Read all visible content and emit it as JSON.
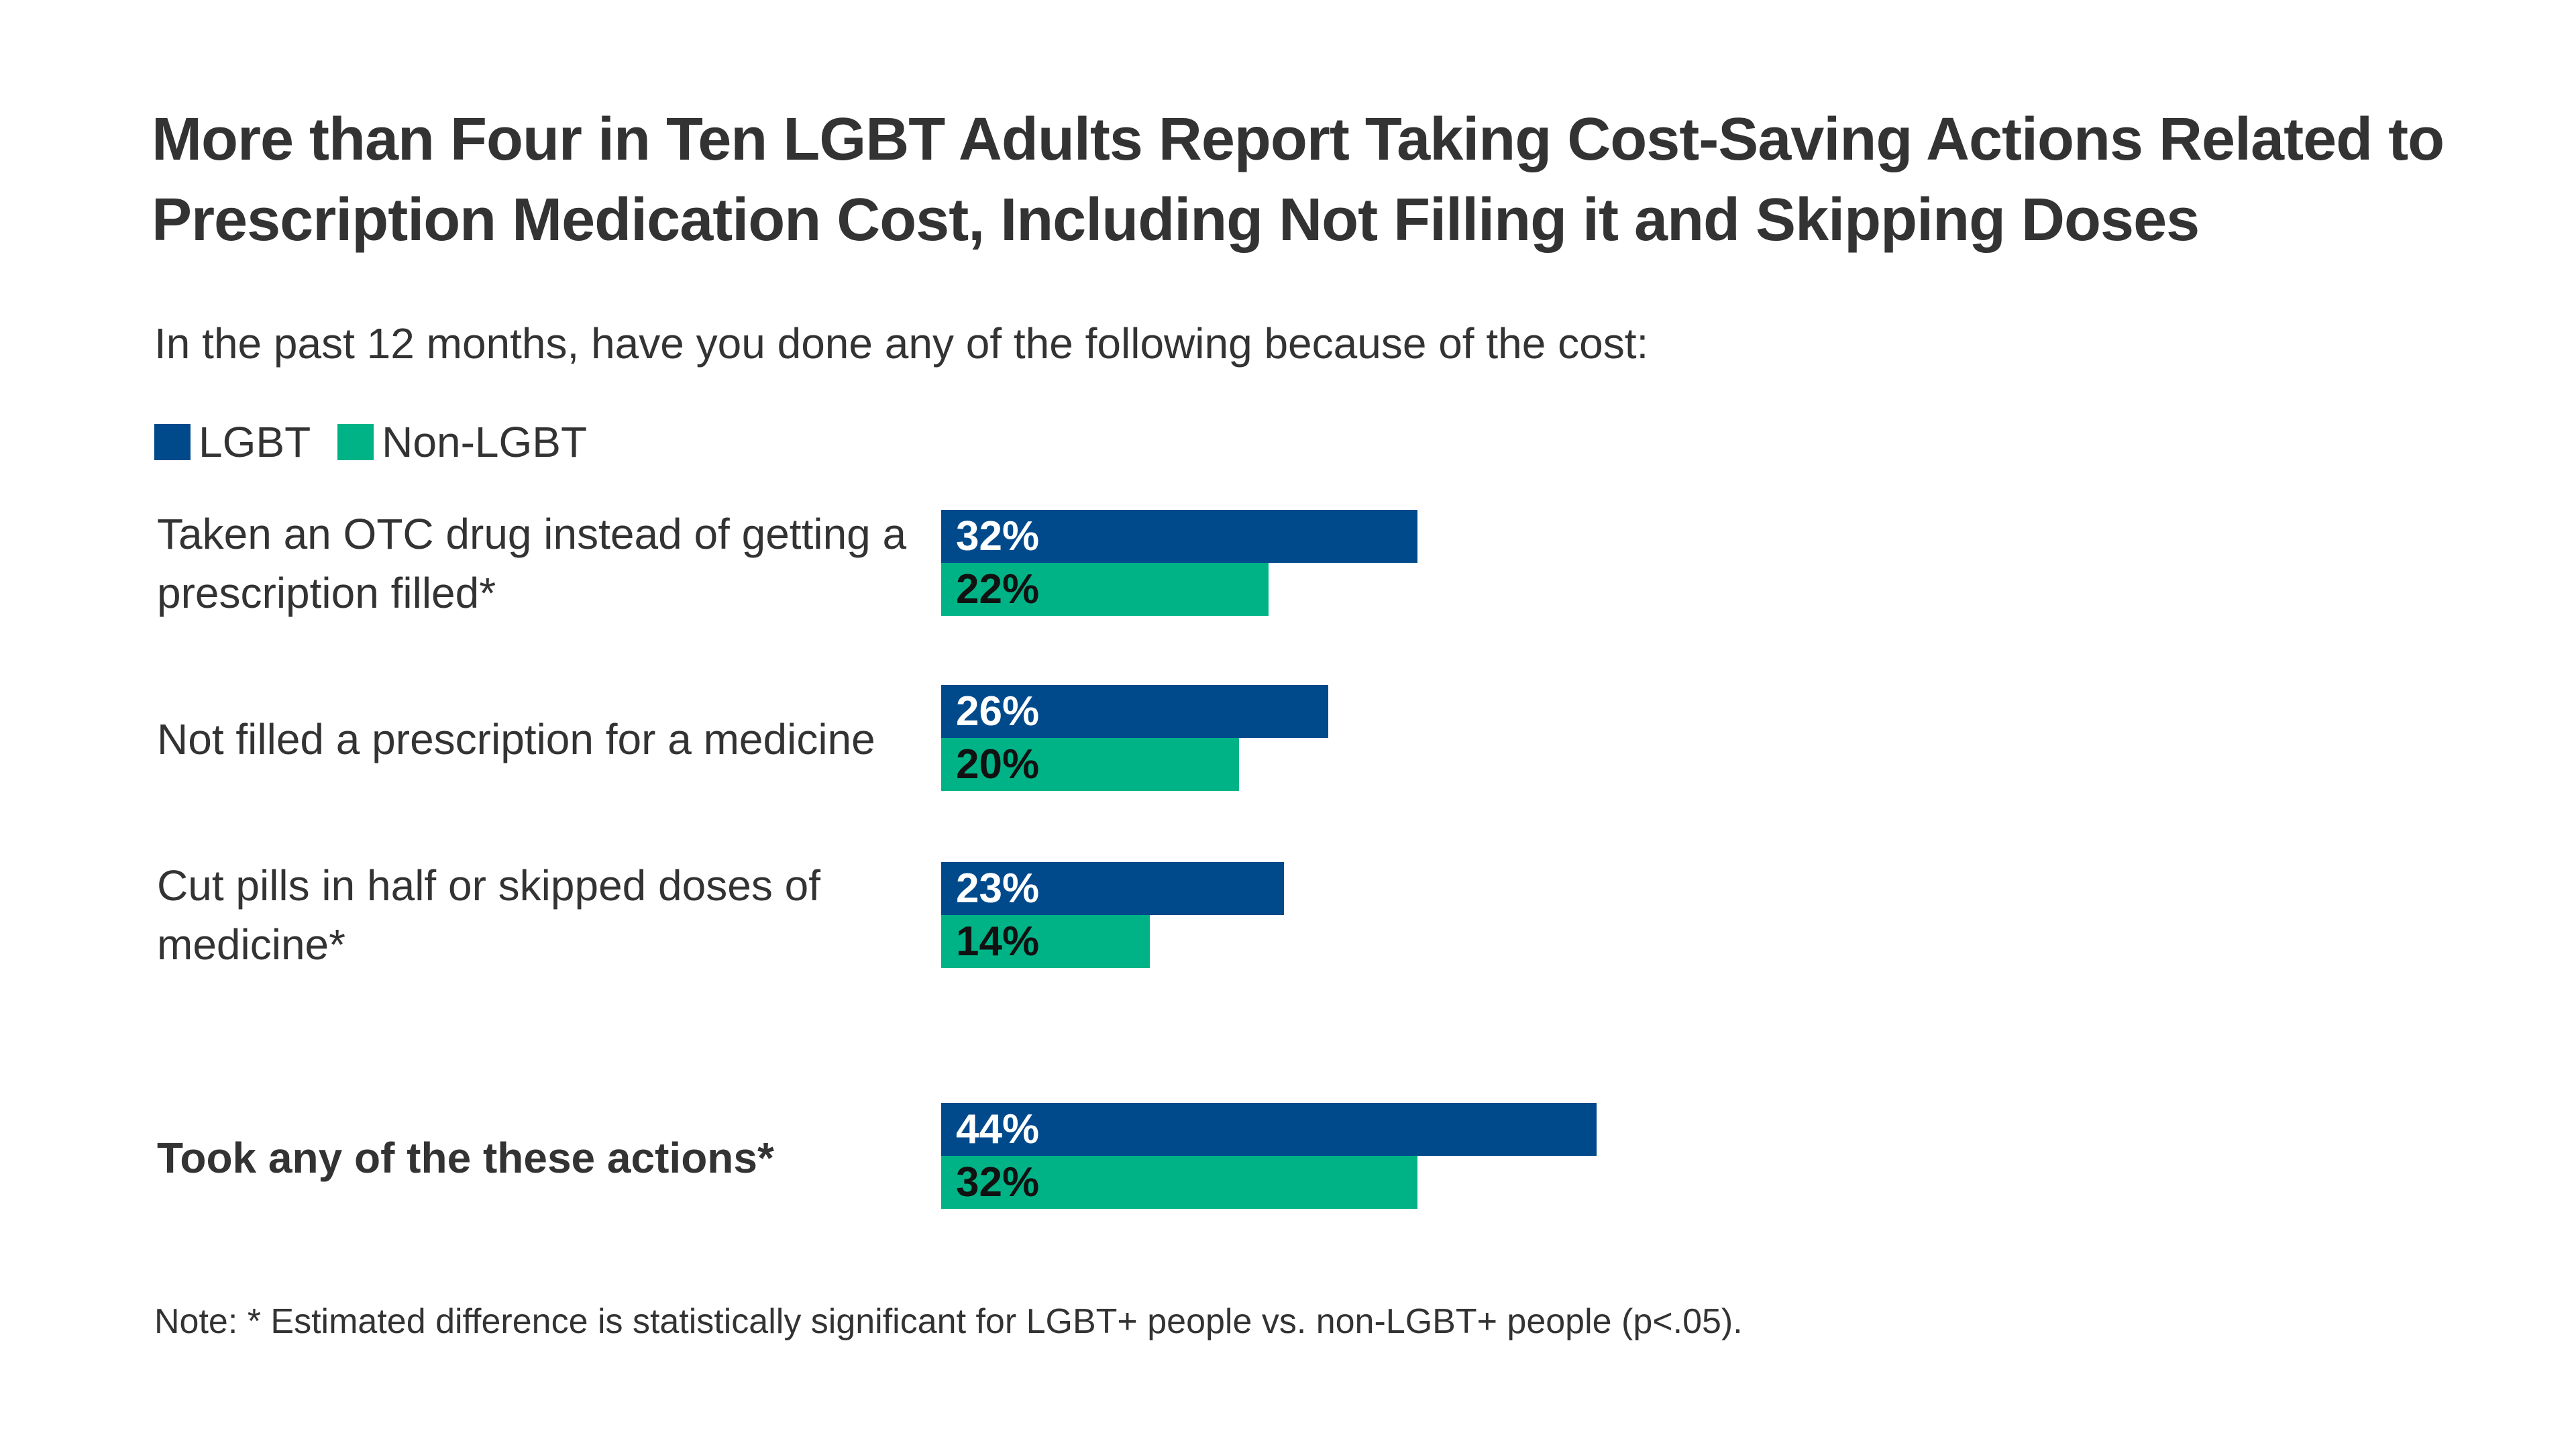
{
  "title": "More than Four in Ten LGBT Adults Report Taking Cost-Saving Actions Related to Prescription Medication Cost, Including Not Filling it and Skipping Doses",
  "subtitle": "In the past 12 months, have you done any of the following because of the cost:",
  "note": "Note: * Estimated difference is statistically significant for LGBT+ people vs. non-LGBT+ people (p<.05).",
  "colors": {
    "LGBT": "#004a8c",
    "Non-LGBT": "#00b386",
    "text": "#333333"
  },
  "chart_data": {
    "type": "bar",
    "orientation": "horizontal",
    "categories": [
      "Taken an OTC drug instead of getting a prescription filled*",
      "Not filled a prescription for a medicine",
      "Cut pills in half or skipped doses of medicine*",
      "Took any of the these actions*"
    ],
    "series": [
      {
        "name": "LGBT",
        "values": [
          32,
          26,
          23,
          44
        ],
        "labels": [
          "32%",
          "26%",
          "23%",
          "44%"
        ]
      },
      {
        "name": "Non-LGBT",
        "values": [
          22,
          20,
          14,
          32
        ],
        "labels": [
          "22%",
          "20%",
          "14%",
          "32%"
        ]
      }
    ],
    "unit": "%",
    "legend": "top-left",
    "grid": false
  }
}
